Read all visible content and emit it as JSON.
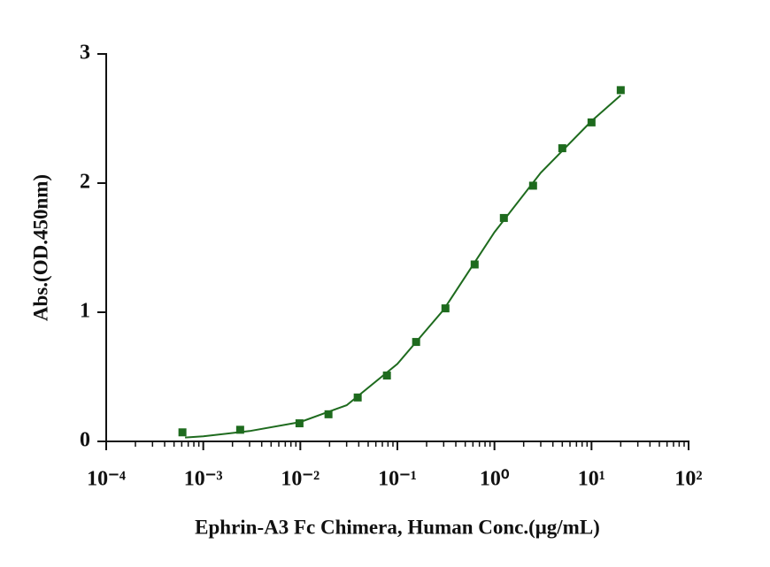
{
  "chart_data": {
    "type": "scatter",
    "x_label": "Ephrin-A3 Fc Chimera, Human Conc.(μg/mL)",
    "y_label": "Abs.(OD.450nm)",
    "x_scale": "log",
    "xlim": [
      0.0001,
      100
    ],
    "xticks": [
      {
        "value": 0.0001,
        "label": "10⁻⁴"
      },
      {
        "value": 0.001,
        "label": "10⁻³"
      },
      {
        "value": 0.01,
        "label": "10⁻²"
      },
      {
        "value": 0.1,
        "label": "10⁻¹"
      },
      {
        "value": 1,
        "label": "10⁰"
      },
      {
        "value": 10,
        "label": "10¹"
      },
      {
        "value": 100,
        "label": "10²"
      }
    ],
    "ylim": [
      0,
      3
    ],
    "yticks": [
      0,
      1,
      2,
      3
    ],
    "series": [
      {
        "color": "#1e6b1e",
        "x": [
          0.00061,
          0.0024,
          0.0098,
          0.0195,
          0.039,
          0.078,
          0.156,
          0.3125,
          0.625,
          1.25,
          2.5,
          5,
          10,
          20
        ],
        "y": [
          0.07,
          0.09,
          0.14,
          0.21,
          0.34,
          0.51,
          0.77,
          1.03,
          1.37,
          1.73,
          1.98,
          2.27,
          2.47,
          2.72
        ]
      },
      {
        "type": "line",
        "color": "#1e6b1e",
        "x": [
          0.00065,
          0.001,
          0.003,
          0.01,
          0.03,
          0.1,
          0.3,
          1,
          3,
          10,
          20
        ],
        "y": [
          0.03,
          0.04,
          0.08,
          0.15,
          0.28,
          0.6,
          1.02,
          1.62,
          2.08,
          2.48,
          2.68
        ]
      }
    ]
  }
}
